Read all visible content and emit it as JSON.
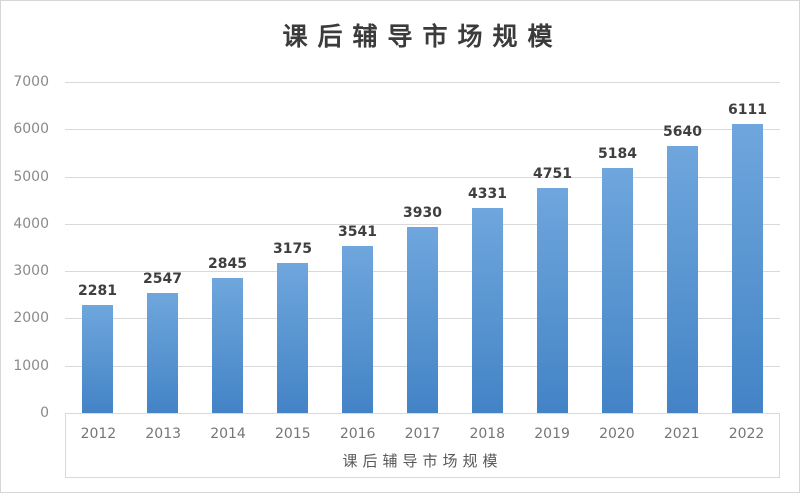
{
  "chart": {
    "title": "课后辅导市场规模"
  },
  "chart_data": {
    "type": "bar",
    "title": "课后辅导市场规模",
    "categories": [
      "2012",
      "2013",
      "2014",
      "2015",
      "2016",
      "2017",
      "2018",
      "2019",
      "2020",
      "2021",
      "2022"
    ],
    "values": [
      2281,
      2547,
      2845,
      3175,
      3541,
      3930,
      4331,
      4751,
      5184,
      5640,
      6111
    ],
    "xlabel": "课后辅导市场规模",
    "ylabel": "",
    "ylim": [
      0,
      7000
    ],
    "yticks": [
      0,
      1000,
      2000,
      3000,
      4000,
      5000,
      6000,
      7000
    ],
    "grid": true,
    "legend_position": "none",
    "data_labels": true,
    "colors": {
      "bar_top": "#6fa6dd",
      "bar_bottom": "#4383c6",
      "gridline": "#d9d9d9",
      "title_text": "#3b3b3b",
      "data_label_text": "#3f3f3f",
      "y_tick_text": "#8a8a8a",
      "x_tick_text": "#767676",
      "axis_title_text": "#595959",
      "frame_border": "#d6d6d6"
    }
  }
}
